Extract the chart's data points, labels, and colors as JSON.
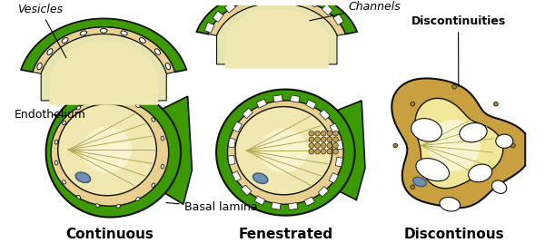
{
  "background_color": "#ffffff",
  "green_fill": "#3d9900",
  "green_dark": "#2a7000",
  "tan_endo": "#e8d090",
  "tan_lumen": "#f0e8b0",
  "tan_disc_outer": "#c8a040",
  "tan_disc_inner": "#e8d080",
  "outline_color": "#111111",
  "nucleus_blue": "#7090b0",
  "nucleus_dark": "#405870",
  "white": "#ffffff",
  "lumen_line_color": "#c0b060",
  "dot_color": "#c09050",
  "labels": {
    "vesicles": "Vesicles",
    "channels": "Channels",
    "discontinuities": "Discontinuities",
    "endothelium": "Endothelium",
    "basal_lamina": "Basal lamina",
    "continuous": "Continuous",
    "fenestrated": "Fenestrated",
    "discontinuous": "Discontinous"
  },
  "label_fs": 9,
  "main_fs": 11
}
